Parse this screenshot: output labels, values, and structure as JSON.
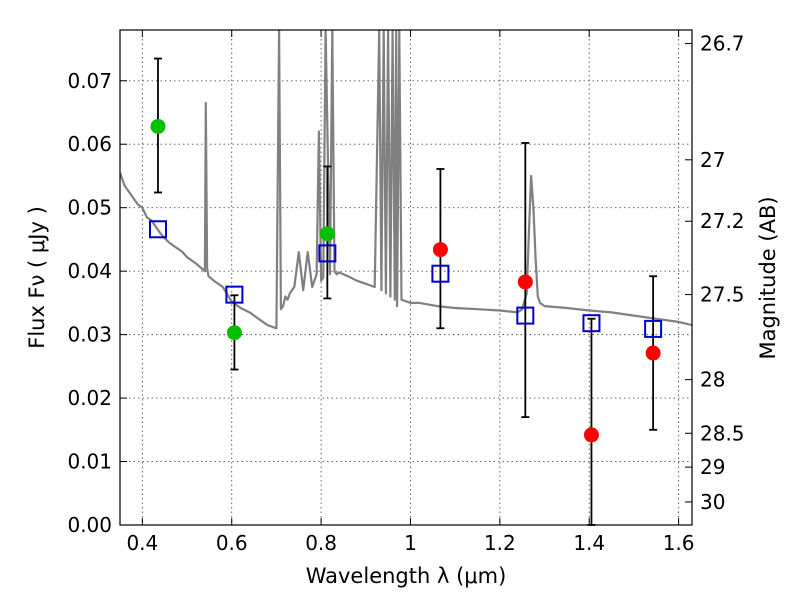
{
  "chart_data": {
    "type": "scatter",
    "xlabel": "Wavelength  λ (μm)",
    "ylabel": "Flux  Fν  ( μJy )",
    "y2label": "Magnitude (AB)",
    "xlim": [
      0.35,
      1.63
    ],
    "ylim": [
      0.0,
      0.078
    ],
    "grid": true,
    "x_ticks": [
      {
        "value": 0.4,
        "label": "0.4"
      },
      {
        "value": 0.6,
        "label": "0.6"
      },
      {
        "value": 0.8,
        "label": "0.8"
      },
      {
        "value": 1.0,
        "label": "1"
      },
      {
        "value": 1.2,
        "label": "1.2"
      },
      {
        "value": 1.4,
        "label": "1.4"
      },
      {
        "value": 1.6,
        "label": "1.6"
      }
    ],
    "y_ticks": [
      {
        "value": 0.0,
        "label": "0.00"
      },
      {
        "value": 0.01,
        "label": "0.01"
      },
      {
        "value": 0.02,
        "label": "0.02"
      },
      {
        "value": 0.03,
        "label": "0.03"
      },
      {
        "value": 0.04,
        "label": "0.04"
      },
      {
        "value": 0.05,
        "label": "0.05"
      },
      {
        "value": 0.06,
        "label": "0.06"
      },
      {
        "value": 0.07,
        "label": "0.07"
      }
    ],
    "y2_ticks": [
      {
        "value": 26.7,
        "label": "26.7"
      },
      {
        "value": 27.0,
        "label": "27"
      },
      {
        "value": 27.2,
        "label": "27.2"
      },
      {
        "value": 27.5,
        "label": "27.5"
      },
      {
        "value": 28.0,
        "label": "28"
      },
      {
        "value": 28.5,
        "label": "28.5"
      },
      {
        "value": 29.0,
        "label": "29"
      },
      {
        "value": 30.0,
        "label": "30"
      }
    ],
    "series": [
      {
        "marker": "circle",
        "color": "#00c000",
        "points": [
          {
            "x": 0.435,
            "y": 0.0628,
            "err_low": 0.0524,
            "err_high": 0.0735
          },
          {
            "x": 0.606,
            "y": 0.0303,
            "err_low": 0.0245,
            "err_high": 0.0362
          },
          {
            "x": 0.814,
            "y": 0.0459,
            "err_low": 0.0357,
            "err_high": 0.0565
          }
        ]
      },
      {
        "marker": "circle",
        "color": "#ff0000",
        "points": [
          {
            "x": 1.067,
            "y": 0.0434,
            "err_low": 0.031,
            "err_high": 0.0561
          },
          {
            "x": 1.257,
            "y": 0.0383,
            "err_low": 0.017,
            "err_high": 0.0602
          },
          {
            "x": 1.405,
            "y": 0.0142,
            "err_low": 0.0,
            "err_high": 0.0325
          },
          {
            "x": 1.543,
            "y": 0.0271,
            "err_low": 0.015,
            "err_high": 0.0392
          }
        ]
      },
      {
        "marker": "square-open",
        "color": "#0000cc",
        "points": [
          {
            "x": 0.435,
            "y": 0.0466
          },
          {
            "x": 0.606,
            "y": 0.0363
          },
          {
            "x": 0.814,
            "y": 0.0428
          },
          {
            "x": 1.067,
            "y": 0.0396
          },
          {
            "x": 1.257,
            "y": 0.033
          },
          {
            "x": 1.405,
            "y": 0.0318
          },
          {
            "x": 1.543,
            "y": 0.0309
          }
        ]
      },
      {
        "type": "line",
        "color": "#808080",
        "x": [
          0.35,
          0.36,
          0.37,
          0.38,
          0.39,
          0.4,
          0.41,
          0.42,
          0.43,
          0.44,
          0.45,
          0.46,
          0.47,
          0.48,
          0.49,
          0.5,
          0.52,
          0.54,
          0.542,
          0.545,
          0.548,
          0.56,
          0.58,
          0.6,
          0.62,
          0.64,
          0.66,
          0.68,
          0.7,
          0.706,
          0.71,
          0.715,
          0.72,
          0.725,
          0.73,
          0.74,
          0.75,
          0.76,
          0.77,
          0.78,
          0.79,
          0.795,
          0.8,
          0.805,
          0.81,
          0.82,
          0.825,
          0.83,
          0.835,
          0.84,
          0.86,
          0.88,
          0.9,
          0.92,
          0.93,
          0.935,
          0.94,
          0.945,
          0.95,
          0.955,
          0.96,
          0.965,
          0.968,
          0.97,
          0.975,
          0.98,
          1.0,
          1.02,
          1.06,
          1.1,
          1.15,
          1.2,
          1.24,
          1.25,
          1.26,
          1.265,
          1.27,
          1.275,
          1.28,
          1.285,
          1.29,
          1.3,
          1.35,
          1.4,
          1.45,
          1.5,
          1.55,
          1.6,
          1.63
        ],
        "y": [
          0.0555,
          0.0535,
          0.0525,
          0.0515,
          0.0505,
          0.05,
          0.0485,
          0.048,
          0.047,
          0.046,
          0.0452,
          0.0445,
          0.044,
          0.0435,
          0.043,
          0.0422,
          0.0412,
          0.04,
          0.0665,
          0.0405,
          0.0392,
          0.0385,
          0.0375,
          0.0352,
          0.0342,
          0.0335,
          0.0325,
          0.0315,
          0.031,
          0.078,
          0.034,
          0.0345,
          0.036,
          0.0355,
          0.0365,
          0.0375,
          0.043,
          0.037,
          0.043,
          0.0375,
          0.0395,
          0.062,
          0.0385,
          0.039,
          0.078,
          0.0395,
          0.078,
          0.04,
          0.0395,
          0.0398,
          0.0392,
          0.0385,
          0.038,
          0.0375,
          0.078,
          0.037,
          0.078,
          0.0365,
          0.078,
          0.036,
          0.078,
          0.0355,
          0.078,
          0.0345,
          0.078,
          0.0355,
          0.035,
          0.035,
          0.0345,
          0.0342,
          0.034,
          0.0338,
          0.0335,
          0.034,
          0.0365,
          0.046,
          0.055,
          0.05,
          0.042,
          0.036,
          0.035,
          0.0345,
          0.0342,
          0.0338,
          0.0335,
          0.033,
          0.0325,
          0.032,
          0.0315
        ]
      }
    ]
  }
}
